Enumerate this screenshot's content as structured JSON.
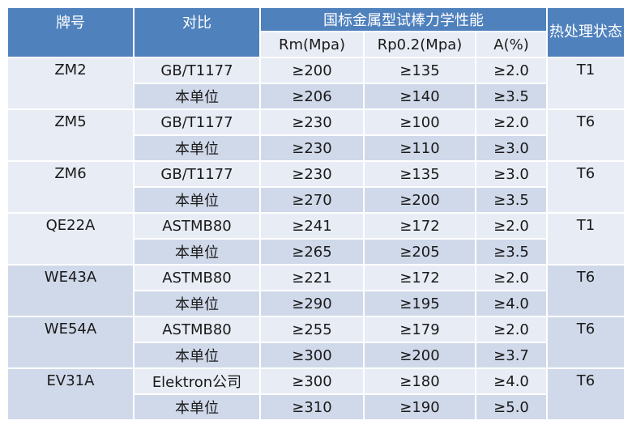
{
  "header": {
    "grade": "牌号",
    "compare": "对比",
    "props": "国标金属型试棒力学性能",
    "heat": "热处理状态",
    "rm": "Rm(Mpa)",
    "rp": "Rp0.2(Mpa)",
    "a": "A(%)"
  },
  "rows": [
    {
      "grade": "ZM2",
      "heat": "T1",
      "data": [
        {
          "compare": "GB/T1177",
          "rm": "≥200",
          "rp": "≥135",
          "a": "≥2.0"
        },
        {
          "compare": "本单位",
          "rm": "≥206",
          "rp": "≥140",
          "a": "≥3.5"
        }
      ]
    },
    {
      "grade": "ZM5",
      "heat": "T6",
      "data": [
        {
          "compare": "GB/T1177",
          "rm": "≥230",
          "rp": "≥100",
          "a": "≥2.0"
        },
        {
          "compare": "本单位",
          "rm": "≥230",
          "rp": "≥110",
          "a": "≥3.0"
        }
      ]
    },
    {
      "grade": "ZM6",
      "heat": "T6",
      "data": [
        {
          "compare": "GB/T1177",
          "rm": "≥230",
          "rp": "≥135",
          "a": "≥3.0"
        },
        {
          "compare": "本单位",
          "rm": "≥270",
          "rp": "≥200",
          "a": "≥3.5"
        }
      ]
    },
    {
      "grade": "QE22A",
      "heat": "T1",
      "data": [
        {
          "compare": "ASTMB80",
          "rm": "≥241",
          "rp": "≥172",
          "a": "≥2.0"
        },
        {
          "compare": "本单位",
          "rm": "≥265",
          "rp": "≥205",
          "a": "≥3.5"
        }
      ]
    },
    {
      "grade": "WE43A",
      "heat": "T6",
      "data": [
        {
          "compare": "ASTMB80",
          "rm": "≥221",
          "rp": "≥172",
          "a": "≥2.0"
        },
        {
          "compare": "本单位",
          "rm": "≥290",
          "rp": "≥195",
          "a": "≥4.0"
        }
      ]
    },
    {
      "grade": "WE54A",
      "heat": "T6",
      "data": [
        {
          "compare": "ASTMB80",
          "rm": "≥255",
          "rp": "≥179",
          "a": "≥2.0"
        },
        {
          "compare": "本单位",
          "rm": "≥300",
          "rp": "≥200",
          "a": "≥3.7"
        }
      ]
    },
    {
      "grade": "EV31A",
      "heat": "T6",
      "data": [
        {
          "compare": "Elektron公司",
          "rm": "≥300",
          "rp": "≥180",
          "a": "≥4.0"
        },
        {
          "compare": "本单位",
          "rm": "≥310",
          "rp": "≥190",
          "a": "≥5.0"
        }
      ]
    }
  ],
  "colors": {
    "header": "#4f81bd",
    "light": "#e8ecf5",
    "mid": "#d0d9ea"
  }
}
